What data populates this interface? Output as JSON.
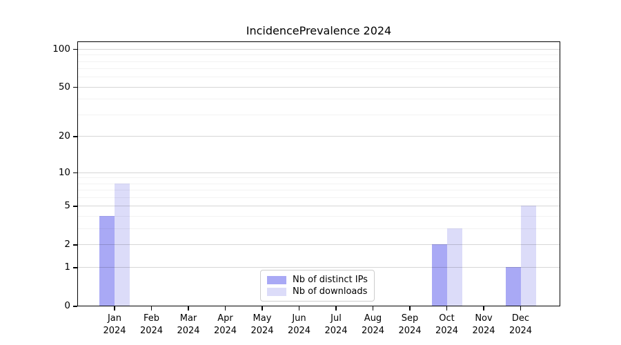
{
  "title": "IncidencePrevalence 2024",
  "chart_data": {
    "type": "bar",
    "title": "IncidencePrevalence 2024",
    "scale": "log1p",
    "categories": [
      "Jan",
      "Feb",
      "Mar",
      "Apr",
      "May",
      "Jun",
      "Jul",
      "Aug",
      "Sep",
      "Oct",
      "Nov",
      "Dec"
    ],
    "category_year": "2024",
    "series": [
      {
        "name": "Nb of distinct IPs",
        "color": "#a9a9f5",
        "values": [
          4,
          0,
          0,
          0,
          0,
          0,
          0,
          0,
          0,
          2,
          0,
          1
        ]
      },
      {
        "name": "Nb of downloads",
        "color": "#dcdcf9",
        "values": [
          8,
          0,
          0,
          0,
          0,
          0,
          0,
          0,
          0,
          3,
          0,
          5
        ]
      }
    ],
    "xlabel": "",
    "ylabel": "",
    "ylim": [
      0,
      113
    ],
    "y_major_ticks": [
      0,
      1,
      2,
      5,
      10,
      20,
      50,
      100
    ],
    "y_minor_gridlines": [
      3,
      4,
      6,
      7,
      8,
      9,
      30,
      40,
      60,
      70,
      80,
      90
    ],
    "grid": true,
    "grid_over_bars": true,
    "legend_position": "inside-bottom-center",
    "frame_color": "#000000",
    "background_color": "#ffffff"
  }
}
